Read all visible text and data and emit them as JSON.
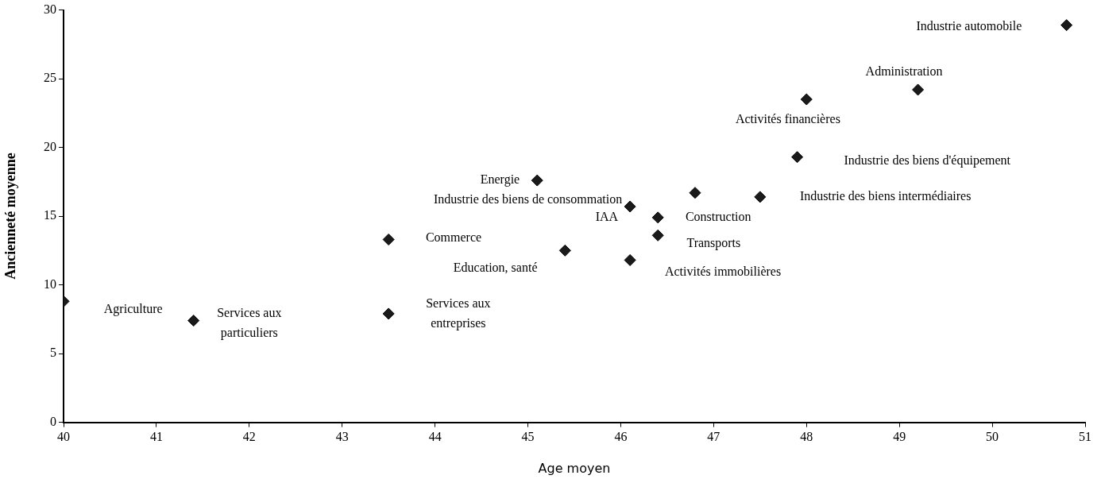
{
  "chart_data": {
    "type": "scatter",
    "xlabel": "Age moyen",
    "ylabel": "Ancienneté moyenne",
    "x": [
      50.8,
      49.2,
      48.0,
      47.9,
      47.5,
      46.4,
      46.4,
      45.1,
      46.1,
      46.8,
      43.5,
      45.4,
      46.1,
      43.5,
      40.0,
      41.4
    ],
    "series": [
      {
        "color": "#1a1a1a",
        "values": [
          28.9,
          24.2,
          23.5,
          19.3,
          16.4,
          14.9,
          13.6,
          17.6,
          15.7,
          16.7,
          13.3,
          12.5,
          11.8,
          7.9,
          8.8,
          7.4
        ]
      }
    ],
    "marker": "diamond",
    "grid": false,
    "legend": false,
    "xlim": [
      40,
      51
    ],
    "xticks": [
      40,
      41,
      42,
      43,
      44,
      45,
      46,
      47,
      48,
      49,
      50,
      51
    ],
    "ylim": [
      0,
      30
    ],
    "yticks": [
      0,
      5,
      10,
      15,
      20,
      25,
      30
    ],
    "annotations": [
      "Industrie automobile",
      "Administration",
      "Activités financières",
      "Industrie des biens d'équipement",
      "Industrie des biens intermédiaires",
      "Construction",
      "Transports",
      "Energie",
      "Industrie des biens de consommation",
      "IAA",
      "Commerce",
      "Education, santé",
      "Activités immobilières",
      "Services aux entreprises",
      "Agriculture",
      "Services aux particuliers"
    ]
  }
}
